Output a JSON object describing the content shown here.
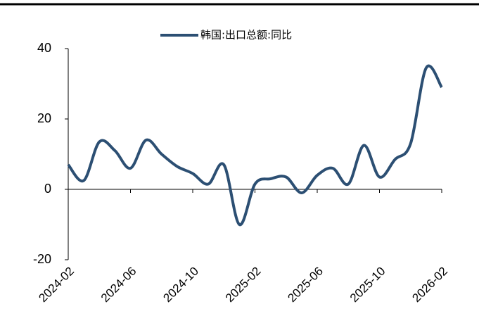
{
  "chart_data": {
    "type": "line",
    "categories": [
      "2024-02",
      null,
      null,
      null,
      "2024-06",
      null,
      null,
      null,
      "2024-10",
      null,
      null,
      null,
      "2025-02",
      null,
      null,
      null,
      "2025-06",
      null,
      null,
      null,
      "2025-10",
      null,
      null,
      null,
      "2026-02"
    ],
    "series": [
      {
        "name": "韩国:出口总额:同比",
        "color": "#2c4f73",
        "values": [
          7,
          2.5,
          13.5,
          11,
          6,
          14,
          10,
          6.5,
          4.5,
          1.5,
          7,
          -10,
          1.5,
          3,
          3.5,
          -1,
          4,
          6,
          1.5,
          12.5,
          3.5,
          8.5,
          13,
          34.5,
          29
        ]
      }
    ],
    "ylim": [
      -20,
      40
    ],
    "yticks": [
      -20,
      0,
      20,
      40
    ],
    "legend": "top",
    "grid": false
  }
}
